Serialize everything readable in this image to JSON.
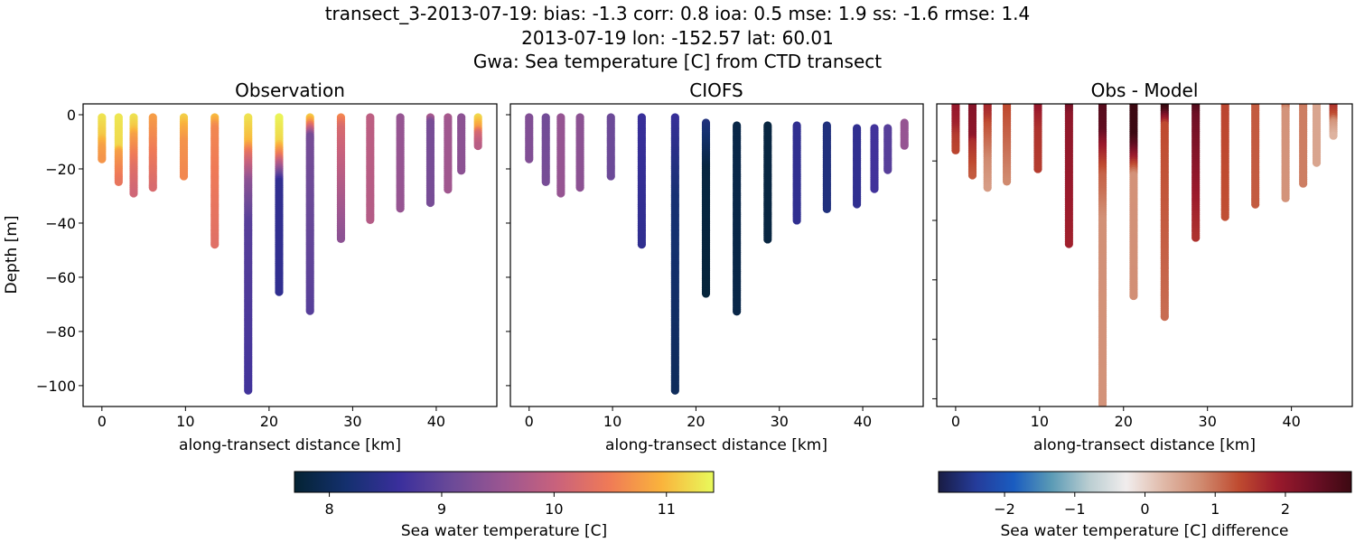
{
  "title_lines": [
    "transect_3-2013-07-19: bias: -1.3  corr: 0.8  ioa: 0.5  mse: 1.9  ss: -1.6  rmse: 1.4",
    "2013-07-19 lon: -152.57 lat: 60.01",
    "Gwa: Sea temperature [C] from CTD transect"
  ],
  "chart_data": [
    {
      "type": "scatter",
      "title": "Observation",
      "xlabel": "along-transect distance [km]",
      "ylabel": "Depth [m]",
      "xlim": [
        -2.25,
        47.25
      ],
      "ylim": [
        -107.7,
        4
      ],
      "xticks": [
        0,
        10,
        20,
        30,
        40
      ],
      "yticks": [
        0,
        -20,
        -40,
        -60,
        -80,
        -100
      ],
      "colorbar": "temperature",
      "grid": false
    },
    {
      "type": "scatter",
      "title": "CIOFS",
      "xlabel": "along-transect distance [km]",
      "xlim": [
        -2.25,
        47.25
      ],
      "ylim": [
        -107.7,
        4
      ],
      "xticks": [
        0,
        10,
        20,
        30,
        40
      ],
      "yticks": [
        0,
        -20,
        -40,
        -60,
        -80,
        -100
      ],
      "colorbar": "temperature",
      "grid": false
    },
    {
      "type": "scatter",
      "title": "Obs - Model",
      "xlabel": "along-transect distance [km]",
      "xlim": [
        -2.25,
        47.25
      ],
      "ylim": [
        -102.6,
        -0.8
      ],
      "xticks": [
        0,
        10,
        20,
        30,
        40
      ],
      "yticks": [
        -20,
        -40,
        -60,
        -80,
        -100
      ],
      "colorbar": "difference",
      "grid": false
    }
  ],
  "stations": [
    {
      "distance_km": 0.0,
      "top": -1,
      "bottom": -17,
      "obs": [
        [
          0,
          11.3
        ],
        [
          -8,
          11.1
        ],
        [
          -12,
          10.8
        ],
        [
          -17,
          10.7
        ]
      ],
      "model": [
        [
          0,
          9.3
        ],
        [
          -17,
          9.3
        ]
      ]
    },
    {
      "distance_km": 2.0,
      "top": -1,
      "bottom": -25,
      "obs": [
        [
          0,
          11.3
        ],
        [
          -12,
          11.2
        ],
        [
          -14,
          10.8
        ],
        [
          -25,
          10.4
        ]
      ],
      "model": [
        [
          0,
          9.15
        ],
        [
          -25,
          9.2
        ]
      ]
    },
    {
      "distance_km": 3.8,
      "top": -1,
      "bottom": -29,
      "obs": [
        [
          0,
          11.3
        ],
        [
          -5,
          11.1
        ],
        [
          -8,
          10.8
        ],
        [
          -20,
          10.3
        ],
        [
          -29,
          10.1
        ]
      ],
      "model": [
        [
          0,
          9.5
        ],
        [
          -29,
          9.5
        ]
      ]
    },
    {
      "distance_km": 6.1,
      "top": -1,
      "bottom": -27,
      "obs": [
        [
          0,
          10.8
        ],
        [
          -27,
          10.2
        ]
      ],
      "model": [
        [
          0,
          9.4
        ],
        [
          -27,
          9.4
        ]
      ]
    },
    {
      "distance_km": 9.8,
      "top": -1,
      "bottom": -23,
      "obs": [
        [
          0,
          11.2
        ],
        [
          -5,
          10.9
        ],
        [
          -10,
          10.7
        ],
        [
          -23,
          10.6
        ]
      ],
      "model": [
        [
          0,
          9.1
        ],
        [
          -23,
          9.1
        ]
      ]
    },
    {
      "distance_km": 13.5,
      "top": -1,
      "bottom": -48,
      "obs": [
        [
          0,
          11.1
        ],
        [
          -5,
          10.6
        ],
        [
          -48,
          10.3
        ]
      ],
      "model": [
        [
          0,
          8.6
        ],
        [
          -48,
          8.5
        ]
      ]
    },
    {
      "distance_km": 17.5,
      "top": -1,
      "bottom": -102,
      "obs": [
        [
          0,
          11.3
        ],
        [
          -10,
          11.0
        ],
        [
          -15,
          10.3
        ],
        [
          -25,
          9.4
        ],
        [
          -40,
          8.9
        ],
        [
          -102,
          8.7
        ]
      ],
      "model": [
        [
          0,
          8.6
        ],
        [
          -30,
          8.2
        ],
        [
          -102,
          8.0
        ]
      ]
    },
    {
      "distance_km": 21.2,
      "top": -1,
      "bottom": -66,
      "obs": [
        [
          0,
          11.4
        ],
        [
          -10,
          11.2
        ],
        [
          -15,
          10.5
        ],
        [
          -25,
          8.5
        ],
        [
          -66,
          8.5
        ]
      ],
      "model": [
        [
          -3,
          8.3
        ],
        [
          -20,
          7.8
        ],
        [
          -66,
          7.75
        ]
      ]
    },
    {
      "distance_km": 24.9,
      "top": -1,
      "bottom": -73,
      "obs": [
        [
          0,
          11.3
        ],
        [
          -3,
          10.7
        ],
        [
          -8,
          9.2
        ],
        [
          -73,
          8.9
        ]
      ],
      "model": [
        [
          -4,
          7.85
        ],
        [
          -73,
          7.85
        ]
      ]
    },
    {
      "distance_km": 28.6,
      "top": -1,
      "bottom": -46,
      "obs": [
        [
          0,
          10.7
        ],
        [
          -5,
          10.2
        ],
        [
          -46,
          9.4
        ]
      ],
      "model": [
        [
          -4,
          7.8
        ],
        [
          -46,
          7.8
        ]
      ]
    },
    {
      "distance_km": 32.1,
      "top": -1,
      "bottom": -39,
      "obs": [
        [
          0,
          9.9
        ],
        [
          -39,
          9.8
        ]
      ],
      "model": [
        [
          -4,
          8.5
        ],
        [
          -39,
          8.5
        ]
      ]
    },
    {
      "distance_km": 35.7,
      "top": -1,
      "bottom": -35,
      "obs": [
        [
          0,
          9.5
        ],
        [
          -35,
          9.5
        ]
      ],
      "model": [
        [
          -4,
          8.3
        ],
        [
          -35,
          8.3
        ]
      ]
    },
    {
      "distance_km": 39.3,
      "top": -1,
      "bottom": -33,
      "obs": [
        [
          0,
          9.9
        ],
        [
          -3,
          9.2
        ],
        [
          -33,
          9.2
        ]
      ],
      "model": [
        [
          -5,
          8.5
        ],
        [
          -33,
          8.5
        ]
      ]
    },
    {
      "distance_km": 41.4,
      "top": -1,
      "bottom": -28,
      "obs": [
        [
          0,
          9.7
        ],
        [
          -3,
          9.6
        ],
        [
          -28,
          9.6
        ]
      ],
      "model": [
        [
          -5,
          8.7
        ],
        [
          -28,
          8.7
        ]
      ]
    },
    {
      "distance_km": 43.0,
      "top": -1,
      "bottom": -21,
      "obs": [
        [
          0,
          9.4
        ],
        [
          -21,
          9.4
        ]
      ],
      "model": [
        [
          -5,
          8.9
        ],
        [
          -21,
          8.9
        ]
      ]
    },
    {
      "distance_km": 45.0,
      "top": -1,
      "bottom": -12,
      "obs": [
        [
          0,
          11.3
        ],
        [
          -5,
          10.8
        ],
        [
          -7,
          10.2
        ],
        [
          -12,
          9.8
        ]
      ],
      "model": [
        [
          -3,
          9.5
        ],
        [
          -12,
          9.5
        ]
      ]
    }
  ],
  "colorbars": {
    "temperature": {
      "label": "Sea water temperature [C]",
      "range": [
        7.69,
        11.42
      ],
      "ticks": [
        8,
        9,
        10,
        11
      ],
      "colormap": [
        "#042333",
        "#14306f",
        "#3a2f9c",
        "#6b4a98",
        "#9c5691",
        "#c9627c",
        "#ef7a57",
        "#fab33c",
        "#e8fa5b"
      ]
    },
    "difference": {
      "label": "Sea water temperature [C] difference",
      "range": [
        -2.94,
        2.94
      ],
      "ticks": [
        -2,
        -1,
        0,
        1,
        2
      ],
      "colormap": [
        "#191c44",
        "#253c9a",
        "#1a5cc0",
        "#5a9ab5",
        "#b9cdd1",
        "#f1eded",
        "#e0b9a8",
        "#d08a6f",
        "#bf4b30",
        "#9b1a2c",
        "#6d0f25",
        "#3c0912"
      ]
    }
  }
}
